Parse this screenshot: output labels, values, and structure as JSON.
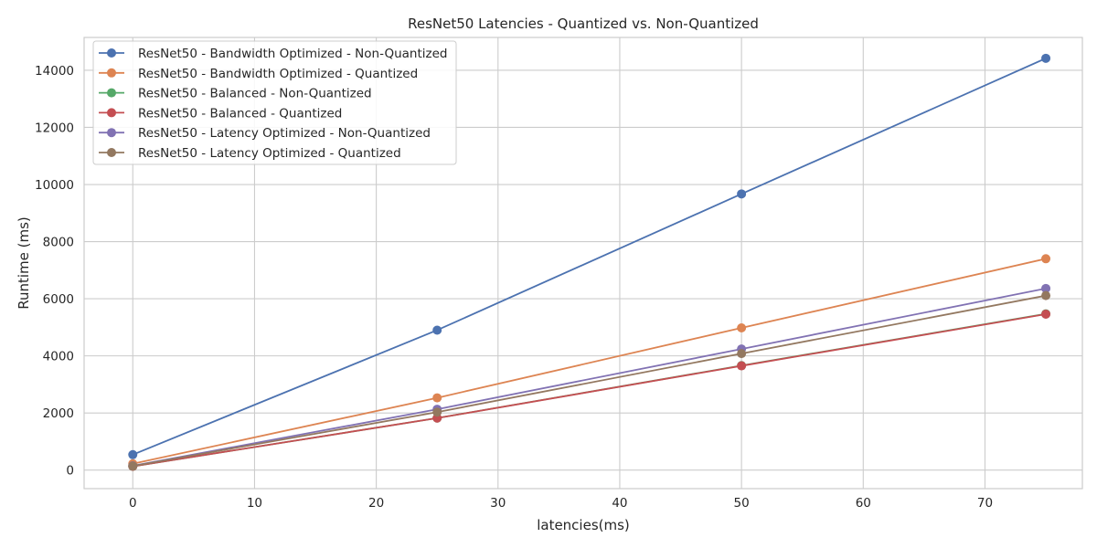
{
  "chart_data": {
    "type": "line",
    "title": "ResNet50 Latencies - Quantized vs. Non-Quantized",
    "xlabel": "latencies(ms)",
    "ylabel": "Runtime (ms)",
    "x": [
      0,
      25,
      50,
      75
    ],
    "xlim": [
      -4,
      78
    ],
    "ylim": [
      -650,
      15150
    ],
    "xticks": [
      0,
      10,
      20,
      30,
      40,
      50,
      60,
      70
    ],
    "yticks": [
      0,
      2000,
      4000,
      6000,
      8000,
      10000,
      12000,
      14000
    ],
    "grid": true,
    "legend_position": "upper-left",
    "series": [
      {
        "name": "ResNet50 - Bandwidth Optimized - Non-Quantized",
        "color": "#4c72b0",
        "values": [
          540,
          4900,
          9670,
          14420
        ]
      },
      {
        "name": "ResNet50 - Bandwidth Optimized - Quantized",
        "color": "#dd8452",
        "values": [
          220,
          2530,
          4980,
          7400
        ]
      },
      {
        "name": "ResNet50 - Balanced - Non-Quantized",
        "color": "#55a868",
        "values": [
          130,
          1820,
          3660,
          5470
        ]
      },
      {
        "name": "ResNet50 - Balanced - Quantized",
        "color": "#c44e52",
        "values": [
          130,
          1820,
          3650,
          5460
        ]
      },
      {
        "name": "ResNet50 - Latency Optimized - Non-Quantized",
        "color": "#8172b3",
        "values": [
          150,
          2130,
          4240,
          6360
        ]
      },
      {
        "name": "ResNet50 - Latency Optimized - Quantized",
        "color": "#937860",
        "values": [
          140,
          2030,
          4080,
          6110
        ]
      }
    ]
  }
}
